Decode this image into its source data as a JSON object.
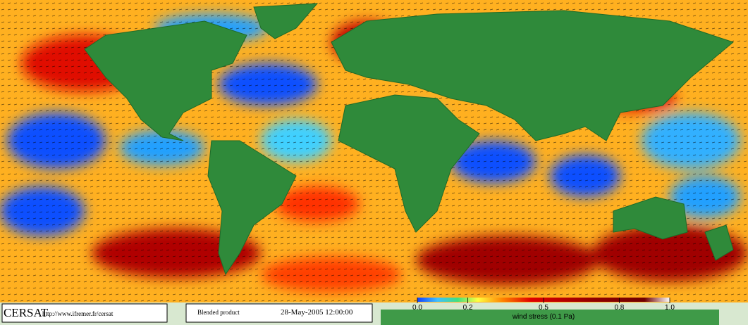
{
  "footer": {
    "brand": "CERSAT",
    "url": "http://www.ifremer.fr/cersat",
    "product": "Blended product",
    "date": "28-May-2005 12:00:00"
  },
  "colorbar": {
    "label": "wind stress (0.1 Pa)",
    "lim": [
      0,
      1
    ],
    "ticks": [
      {
        "value": 0,
        "label": "0.0"
      },
      0.2,
      0.5,
      0.8,
      {
        "value": 1,
        "label": "1.0"
      }
    ]
  }
}
